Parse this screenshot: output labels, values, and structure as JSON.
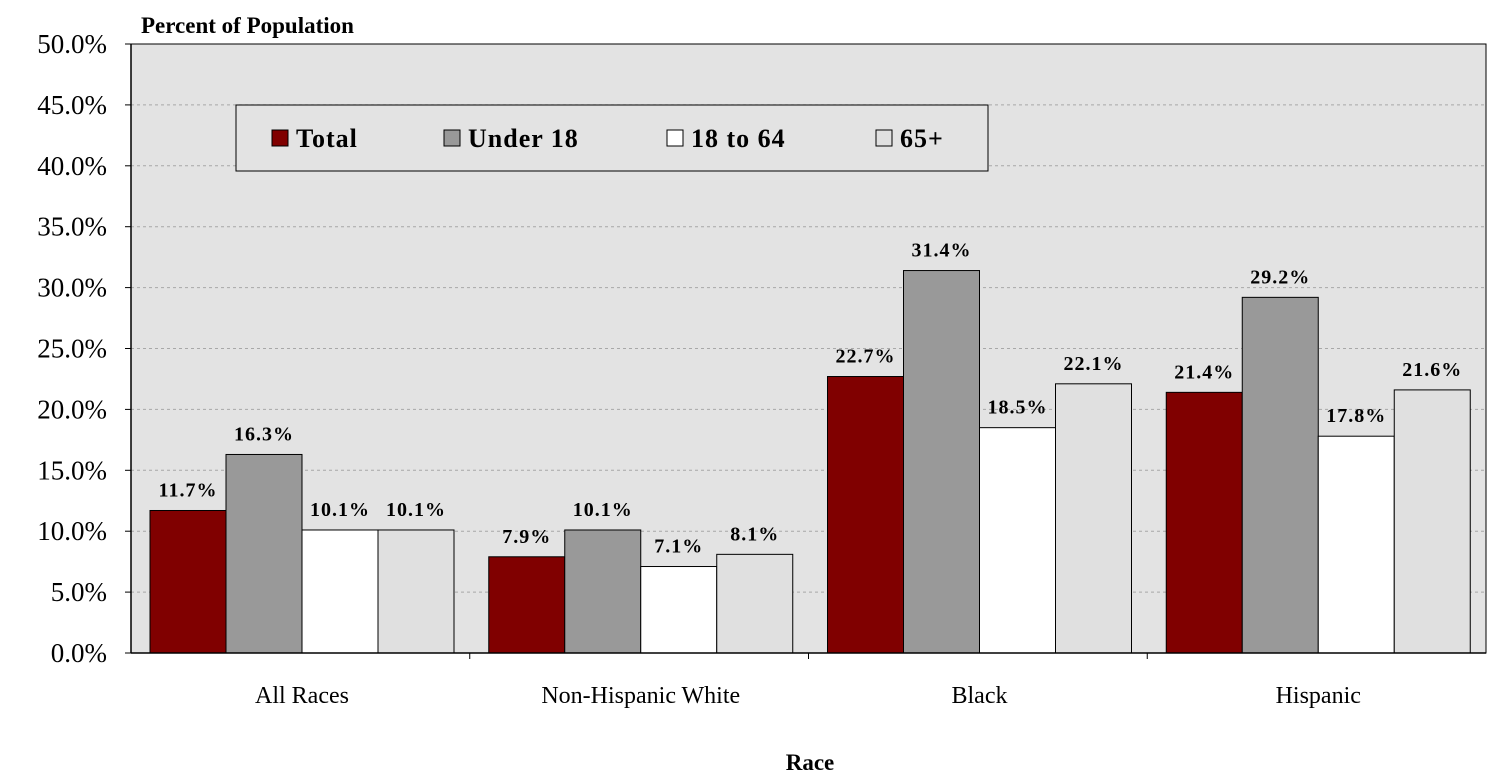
{
  "chart_data": {
    "type": "bar",
    "ylabel": "Percent of Population",
    "xlabel": "Race",
    "categories": [
      "All Races",
      "Non-Hispanic White",
      "Black",
      "Hispanic"
    ],
    "ylim": [
      0,
      50
    ],
    "yticks": [
      0,
      5,
      10,
      15,
      20,
      25,
      30,
      35,
      40,
      45,
      50
    ],
    "ytick_labels": [
      "0.0%",
      "5.0%",
      "10.0%",
      "15.0%",
      "20.0%",
      "25.0%",
      "30.0%",
      "35.0%",
      "40.0%",
      "45.0%",
      "50.0%"
    ],
    "grid": true,
    "legend_position": "top-left",
    "series": [
      {
        "name": "Total",
        "color": "#800000",
        "values": [
          11.7,
          7.9,
          22.7,
          21.4
        ],
        "labels": [
          "11.7%",
          "7.9%",
          "22.7%",
          "21.4%"
        ]
      },
      {
        "name": "Under 18",
        "color": "#999999",
        "values": [
          16.3,
          10.1,
          31.4,
          29.2
        ],
        "labels": [
          "16.3%",
          "10.1%",
          "31.4%",
          "29.2%"
        ]
      },
      {
        "name": "18 to 64",
        "color": "#ffffff",
        "values": [
          10.1,
          7.1,
          18.5,
          17.8
        ],
        "labels": [
          "10.1%",
          "7.1%",
          "18.5%",
          "17.8%"
        ]
      },
      {
        "name": "65+",
        "color": "#e0e0e0",
        "values": [
          10.1,
          8.1,
          22.1,
          21.6
        ],
        "labels": [
          "10.1%",
          "8.1%",
          "22.1%",
          "21.6%"
        ]
      }
    ],
    "plot_background": "#e3e3e3"
  }
}
